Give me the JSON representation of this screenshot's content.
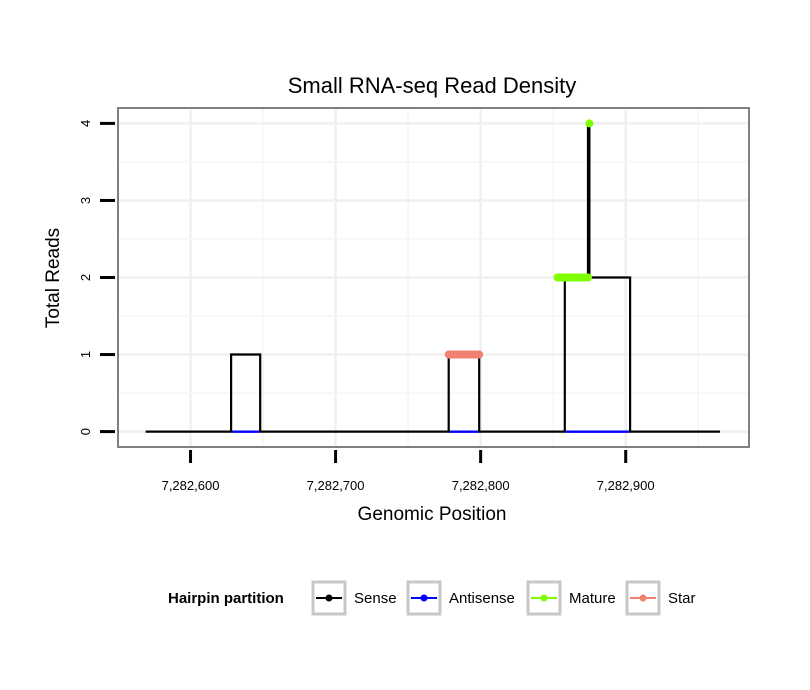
{
  "chart_data": {
    "type": "line",
    "title": "Small RNA-seq Read Density",
    "xlabel": "Genomic Position",
    "ylabel": "Total Reads",
    "xlim": [
      7282550,
      7282985
    ],
    "ylim": [
      -0.2,
      4.2
    ],
    "x_ticks": [
      7282600,
      7282700,
      7282800,
      7282900
    ],
    "x_tick_labels": [
      "7,282,600",
      "7,282,700",
      "7,282,800",
      "7,282,900"
    ],
    "y_ticks": [
      0,
      1,
      2,
      3,
      4
    ],
    "y_tick_labels": [
      "0",
      "1",
      "2",
      "3",
      "4"
    ],
    "grid": true,
    "legend": {
      "title": "Hairpin partition",
      "position": "bottom",
      "entries": [
        {
          "label": "Sense",
          "color": "#000000"
        },
        {
          "label": "Antisense",
          "color": "#0000ff"
        },
        {
          "label": "Mature",
          "color": "#7fff00"
        },
        {
          "label": "Star",
          "color": "#f08070"
        }
      ]
    },
    "series": [
      {
        "name": "Sense",
        "color": "#000000",
        "x": [
          7282569,
          7282628,
          7282628,
          7282648,
          7282648,
          7282778,
          7282778,
          7282799,
          7282799,
          7282858,
          7282858,
          7282874,
          7282874,
          7282875,
          7282875,
          7282877,
          7282877,
          7282903,
          7282903,
          7282965
        ],
        "y": [
          0,
          0,
          1,
          1,
          0,
          0,
          1,
          1,
          0,
          0,
          2,
          2,
          4,
          4,
          2,
          2,
          2,
          2,
          0,
          0
        ]
      },
      {
        "name": "Antisense",
        "color": "#0000ff",
        "segments": [
          [
            7282628,
            7282648
          ],
          [
            7282778,
            7282799
          ],
          [
            7282858,
            7282903
          ]
        ]
      },
      {
        "name": "Mature",
        "color": "#7fff00",
        "segments": [
          [
            7282853,
            7282874
          ]
        ],
        "segment_y": 2,
        "points": [
          {
            "x": 7282875,
            "y": 4
          }
        ]
      },
      {
        "name": "Star",
        "color": "#f08070",
        "segments": [
          [
            7282778,
            7282799
          ]
        ],
        "segment_y": 1
      }
    ]
  }
}
